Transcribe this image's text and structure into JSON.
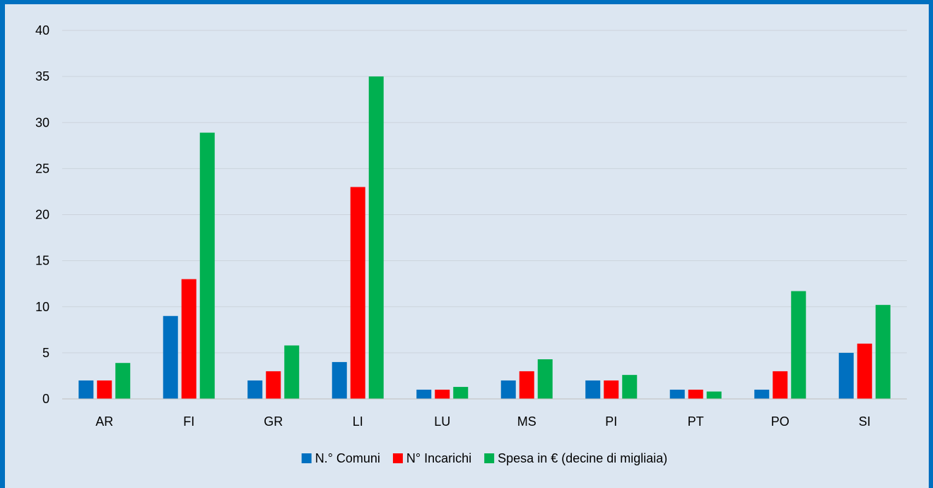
{
  "chart_data": {
    "type": "bar",
    "categories": [
      "AR",
      "FI",
      "GR",
      "LI",
      "LU",
      "MS",
      "PI",
      "PT",
      "PO",
      "SI"
    ],
    "series": [
      {
        "name": "N.° Comuni",
        "color": "#0070c0",
        "values": [
          2,
          9,
          2,
          4,
          1,
          2,
          2,
          1,
          1,
          5
        ]
      },
      {
        "name": "N° Incarichi",
        "color": "#ff0000",
        "values": [
          2,
          13,
          3,
          23,
          1,
          3,
          2,
          1,
          3,
          6
        ]
      },
      {
        "name": "Spesa in € (decine di migliaia)",
        "color": "#00b050",
        "values": [
          3.9,
          28.9,
          5.8,
          35.0,
          1.3,
          4.3,
          2.6,
          0.8,
          11.7,
          10.2
        ]
      }
    ],
    "ylim": [
      0,
      40
    ],
    "yticks": [
      0,
      5,
      10,
      15,
      20,
      25,
      30,
      35,
      40
    ],
    "title": "",
    "xlabel": "",
    "ylabel": "",
    "grid": true,
    "legend_position": "bottom"
  }
}
